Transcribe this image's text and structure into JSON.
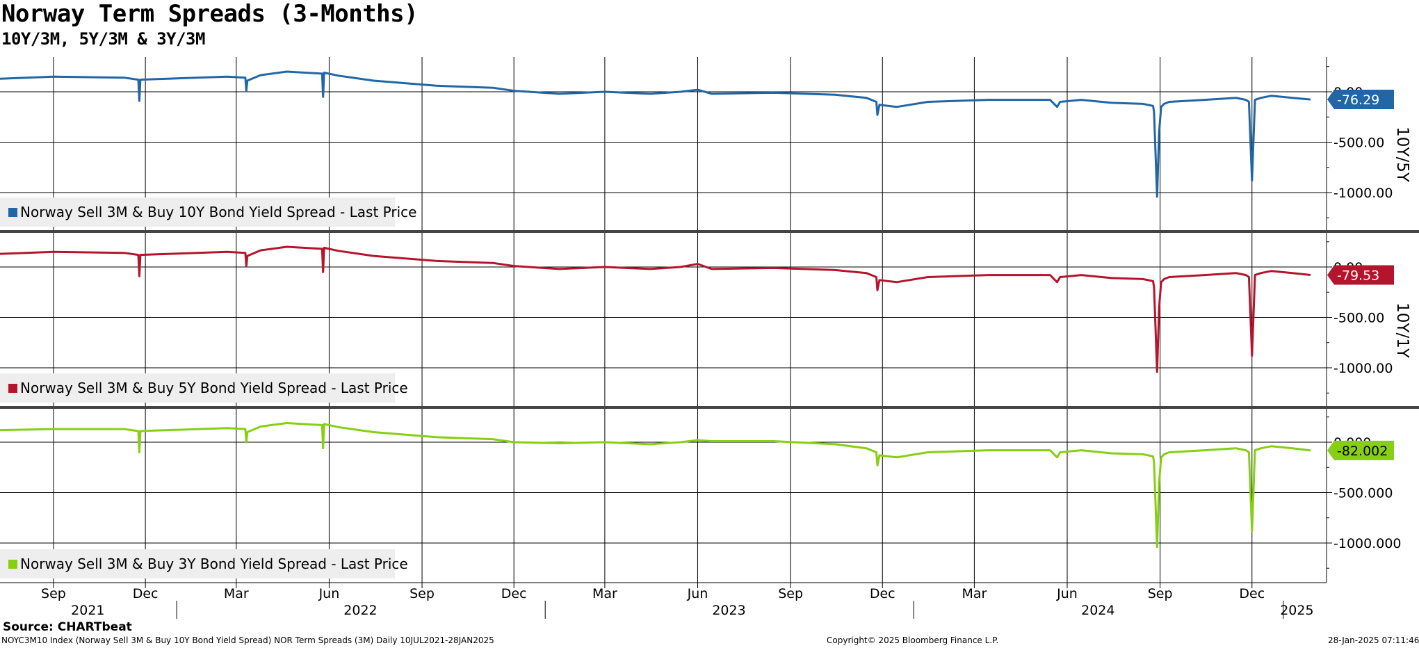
{
  "title": "Norway Term Spreads (3-Months)",
  "subtitle": "10Y/3M, 5Y/3M & 3Y/3M",
  "source": "Source: CHARTbeat",
  "footer": {
    "left": "NOYC3M10 Index (Norway Sell 3M & Buy 10Y Bond Yield Spread) NOR Term Spreads (3M)  Daily 10JUL2021-28JAN2025",
    "center": "Copyright© 2025 Bloomberg Finance L.P.",
    "right": "28-Jan-2025 07:11:46"
  },
  "x_axis": {
    "start": "2021-07-10",
    "end": "2025-01-28",
    "months": [
      {
        "label": "Sep",
        "date": "2021-09-01"
      },
      {
        "label": "Dec",
        "date": "2021-12-01"
      },
      {
        "label": "Mar",
        "date": "2022-03-01"
      },
      {
        "label": "Jun",
        "date": "2022-06-01"
      },
      {
        "label": "Sep",
        "date": "2022-09-01"
      },
      {
        "label": "Dec",
        "date": "2022-12-01"
      },
      {
        "label": "Mar",
        "date": "2023-03-01"
      },
      {
        "label": "Jun",
        "date": "2023-06-01"
      },
      {
        "label": "Sep",
        "date": "2023-09-01"
      },
      {
        "label": "Dec",
        "date": "2023-12-01"
      },
      {
        "label": "Mar",
        "date": "2024-03-01"
      },
      {
        "label": "Jun",
        "date": "2024-06-01"
      },
      {
        "label": "Sep",
        "date": "2024-09-01"
      },
      {
        "label": "Dec",
        "date": "2024-12-01"
      }
    ],
    "years": [
      {
        "label": "2021",
        "start": "2021-07-10",
        "end": "2021-12-31"
      },
      {
        "label": "2022",
        "start": "2022-01-01",
        "end": "2022-12-31"
      },
      {
        "label": "2023",
        "start": "2023-01-01",
        "end": "2023-12-31"
      },
      {
        "label": "2024",
        "start": "2024-01-01",
        "end": "2024-12-31"
      },
      {
        "label": "2025",
        "start": "2025-01-01",
        "end": "2025-01-28"
      }
    ]
  },
  "chart_data": [
    {
      "type": "line",
      "axis_label": "10Y/5Y",
      "ylim": [
        -1250,
        200
      ],
      "yticks": [
        {
          "value": 0,
          "label": "0.00"
        },
        {
          "value": -500,
          "label": "-500.00"
        },
        {
          "value": -1000,
          "label": "-1000.00"
        }
      ],
      "last_label": "-76.29",
      "legend_position": "bottom-left",
      "grid": true,
      "series": [
        {
          "name": "Norway Sell 3M & Buy 10Y Bond Yield Spread - Last Price",
          "color": "#2166a5",
          "x": [
            "2021-07-10",
            "2021-09-01",
            "2021-11-10",
            "2021-11-24",
            "2021-11-25",
            "2021-11-26",
            "2021-12-10",
            "2022-02-20",
            "2022-03-10",
            "2022-03-11",
            "2022-03-12",
            "2022-03-25",
            "2022-04-20",
            "2022-05-25",
            "2022-05-26",
            "2022-05-27",
            "2022-06-10",
            "2022-07-15",
            "2022-09-15",
            "2022-11-10",
            "2022-12-01",
            "2023-01-15",
            "2023-03-01",
            "2023-04-15",
            "2023-05-15",
            "2023-06-01",
            "2023-06-15",
            "2023-08-15",
            "2023-10-15",
            "2023-11-15",
            "2023-11-25",
            "2023-11-26",
            "2023-11-28",
            "2023-12-15",
            "2024-01-15",
            "2024-03-15",
            "2024-05-15",
            "2024-05-22",
            "2024-05-25",
            "2024-06-15",
            "2024-07-15",
            "2024-08-15",
            "2024-08-25",
            "2024-08-26",
            "2024-08-29",
            "2024-08-31",
            "2024-09-02",
            "2024-09-05",
            "2024-09-10",
            "2024-10-15",
            "2024-11-15",
            "2024-11-25",
            "2024-11-28",
            "2024-12-01",
            "2024-12-04",
            "2024-12-10",
            "2024-12-20",
            "2025-01-10",
            "2025-01-28"
          ],
          "values": [
            130,
            150,
            140,
            120,
            -90,
            120,
            125,
            150,
            140,
            10,
            110,
            165,
            200,
            180,
            -50,
            190,
            160,
            110,
            60,
            40,
            10,
            -20,
            0,
            -20,
            0,
            20,
            -20,
            -10,
            -30,
            -60,
            -100,
            -230,
            -130,
            -150,
            -100,
            -80,
            -80,
            -150,
            -100,
            -80,
            -110,
            -120,
            -140,
            -200,
            -1040,
            -400,
            -150,
            -120,
            -100,
            -80,
            -60,
            -80,
            -100,
            -880,
            -80,
            -60,
            -40,
            -60,
            -76.29
          ]
        }
      ]
    },
    {
      "type": "line",
      "axis_label": "10Y/1Y",
      "ylim": [
        -1250,
        200
      ],
      "yticks": [
        {
          "value": 0,
          "label": "0.00"
        },
        {
          "value": -500,
          "label": "-500.00"
        },
        {
          "value": -1000,
          "label": "-1000.00"
        }
      ],
      "last_label": "-79.53",
      "legend_position": "bottom-left",
      "grid": true,
      "series": [
        {
          "name": "Norway Sell 3M & Buy 5Y Bond Yield Spread - Last Price",
          "color": "#b5152c",
          "x": [
            "2021-07-10",
            "2021-09-01",
            "2021-11-10",
            "2021-11-24",
            "2021-11-25",
            "2021-11-26",
            "2021-12-10",
            "2022-02-20",
            "2022-03-10",
            "2022-03-11",
            "2022-03-12",
            "2022-03-25",
            "2022-04-20",
            "2022-05-25",
            "2022-05-26",
            "2022-05-27",
            "2022-06-10",
            "2022-07-15",
            "2022-09-15",
            "2022-11-10",
            "2022-12-01",
            "2023-01-15",
            "2023-03-01",
            "2023-04-15",
            "2023-05-15",
            "2023-06-01",
            "2023-06-15",
            "2023-08-15",
            "2023-10-15",
            "2023-11-15",
            "2023-11-25",
            "2023-11-26",
            "2023-11-28",
            "2023-12-15",
            "2024-01-15",
            "2024-03-15",
            "2024-05-15",
            "2024-05-22",
            "2024-05-25",
            "2024-06-15",
            "2024-07-15",
            "2024-08-15",
            "2024-08-25",
            "2024-08-26",
            "2024-08-29",
            "2024-08-31",
            "2024-09-02",
            "2024-09-05",
            "2024-09-10",
            "2024-10-15",
            "2024-11-15",
            "2024-11-25",
            "2024-11-28",
            "2024-12-01",
            "2024-12-04",
            "2024-12-10",
            "2024-12-20",
            "2025-01-10",
            "2025-01-28"
          ],
          "values": [
            130,
            150,
            140,
            120,
            -90,
            120,
            125,
            150,
            140,
            10,
            110,
            165,
            200,
            180,
            -50,
            190,
            160,
            110,
            60,
            40,
            10,
            -20,
            0,
            -20,
            0,
            30,
            -20,
            -10,
            -30,
            -60,
            -100,
            -230,
            -130,
            -150,
            -100,
            -80,
            -80,
            -150,
            -100,
            -80,
            -110,
            -120,
            -140,
            -200,
            -1040,
            -400,
            -150,
            -120,
            -100,
            -80,
            -60,
            -80,
            -100,
            -880,
            -80,
            -60,
            -40,
            -60,
            -79.53
          ]
        }
      ]
    },
    {
      "type": "line",
      "axis_label": "",
      "ylim": [
        -1250,
        200
      ],
      "yticks": [
        {
          "value": 0,
          "label": "0.000"
        },
        {
          "value": -500,
          "label": "-500.000"
        },
        {
          "value": -1000,
          "label": "-1000.000"
        }
      ],
      "last_label": "-82.002",
      "legend_position": "bottom-left",
      "grid": true,
      "series": [
        {
          "name": "Norway Sell 3M & Buy 3Y Bond Yield Spread - Last Price",
          "color": "#86cf12",
          "x": [
            "2021-07-10",
            "2021-09-01",
            "2021-11-10",
            "2021-11-24",
            "2021-11-25",
            "2021-11-26",
            "2021-12-10",
            "2022-02-20",
            "2022-03-10",
            "2022-03-11",
            "2022-03-12",
            "2022-03-25",
            "2022-04-20",
            "2022-05-25",
            "2022-05-26",
            "2022-05-27",
            "2022-06-10",
            "2022-07-15",
            "2022-09-15",
            "2022-11-10",
            "2022-12-01",
            "2023-01-15",
            "2023-03-01",
            "2023-04-15",
            "2023-05-15",
            "2023-06-01",
            "2023-06-15",
            "2023-08-15",
            "2023-10-15",
            "2023-11-15",
            "2023-11-25",
            "2023-11-26",
            "2023-11-28",
            "2023-12-15",
            "2024-01-15",
            "2024-03-15",
            "2024-05-15",
            "2024-05-22",
            "2024-05-25",
            "2024-06-15",
            "2024-07-15",
            "2024-08-15",
            "2024-08-25",
            "2024-08-26",
            "2024-08-29",
            "2024-08-31",
            "2024-09-02",
            "2024-09-05",
            "2024-09-10",
            "2024-10-15",
            "2024-11-15",
            "2024-11-25",
            "2024-11-28",
            "2024-12-01",
            "2024-12-04",
            "2024-12-10",
            "2024-12-20",
            "2025-01-10",
            "2025-01-28"
          ],
          "values": [
            120,
            130,
            130,
            110,
            -100,
            110,
            115,
            140,
            130,
            0,
            100,
            155,
            190,
            170,
            -60,
            180,
            150,
            100,
            50,
            30,
            0,
            -10,
            0,
            -20,
            0,
            20,
            10,
            10,
            -20,
            -60,
            -100,
            -230,
            -130,
            -150,
            -100,
            -80,
            -80,
            -150,
            -100,
            -80,
            -110,
            -120,
            -140,
            -200,
            -1040,
            -400,
            -150,
            -120,
            -100,
            -80,
            -60,
            -80,
            -100,
            -880,
            -80,
            -60,
            -40,
            -60,
            -82.002
          ]
        }
      ]
    }
  ]
}
